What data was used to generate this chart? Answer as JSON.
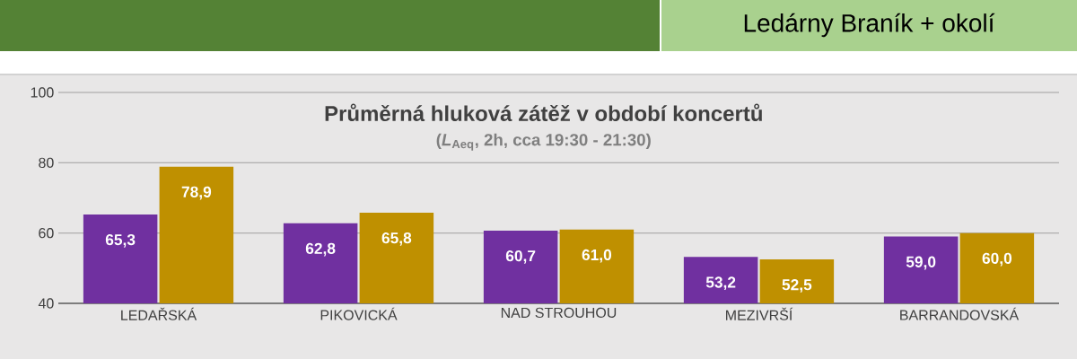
{
  "chart_data": {
    "type": "bar",
    "title": "Průměrná hluková zátěž v období koncertů",
    "subtitle": "(*L*$_{Aeq}$, 2h, cca 19:30 - 21:30)",
    "annotations": [
      "Ledárny Braník + okolí"
    ],
    "categories": [
      "LEDAŘSKÁ",
      "PIKOVICKÁ",
      "NAD STROUHOU",
      "MEZIVRŠÍ",
      "BARRANDOVSKÁ"
    ],
    "series": [
      {
        "color": "#7030a0",
        "values": [
          65.3,
          62.8,
          60.7,
          53.2,
          59.0
        ],
        "value_labels": [
          "65,3",
          "62,8",
          "60,7",
          "53,2",
          "59,0"
        ]
      },
      {
        "color": "#bf9000",
        "values": [
          78.9,
          65.8,
          61.0,
          52.5,
          60.0
        ],
        "value_labels": [
          "78,9",
          "65,8",
          "61,0",
          "52,5",
          "60,0"
        ]
      }
    ],
    "ylim": [
      40,
      100
    ],
    "yticks": [
      40,
      60,
      80,
      100
    ],
    "grid": "y"
  }
}
